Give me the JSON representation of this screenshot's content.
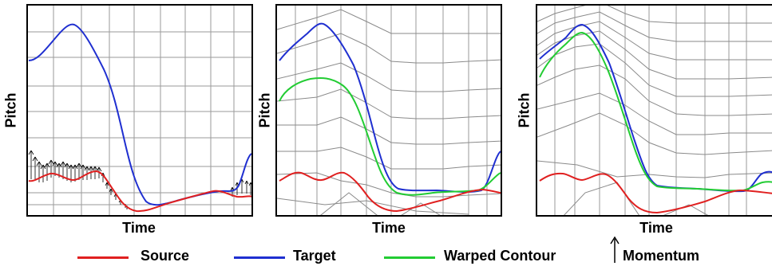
{
  "y_axis_label": "Pitch",
  "x_axis_label": "Time",
  "legend": {
    "source_label": "Source",
    "target_label": "Target",
    "warped_label": "Warped Contour",
    "momentum_label": "Momentum"
  },
  "colors": {
    "source": "#e02020",
    "target": "#1f2fd0",
    "warped": "#22cc33",
    "grid": "#9a9a9a",
    "momentum": "#000000"
  },
  "icons": {
    "momentum": "up-arrow-icon"
  }
}
